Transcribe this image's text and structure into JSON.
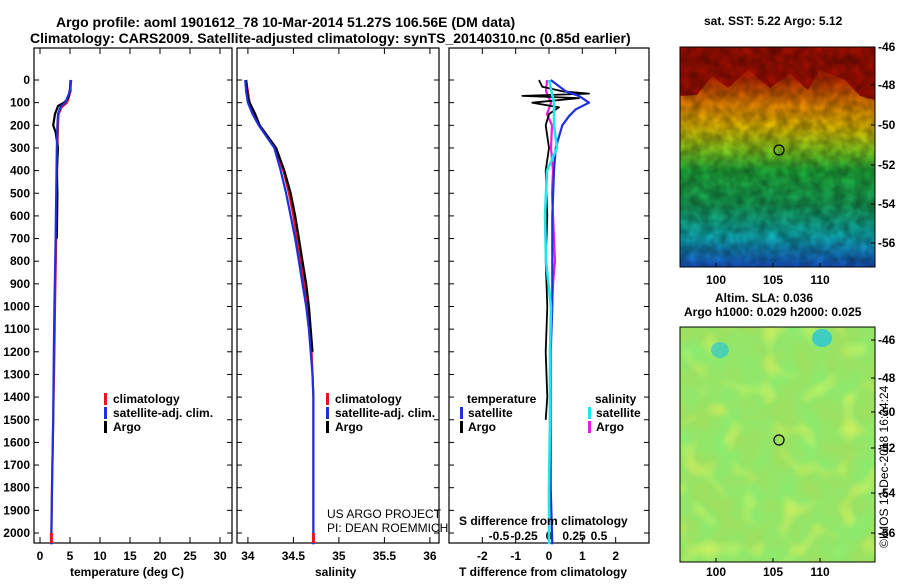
{
  "header": {
    "title_line1": "Argo profile: aoml 1901612_78 10-Mar-2014 51.27S 106.56E (DM data)",
    "title_line2": "Climatology: CARS2009. Satellite-adjusted climatology: synTS_20140310.nc (0.85d earlier)"
  },
  "colors": {
    "climatology": "#e8141c",
    "satellite": "#1f2fe0",
    "argo": "#000000",
    "sat_t": "#1f2fe0",
    "sat_s": "#22e6e6",
    "argo_s": "#e81ce0"
  },
  "depth_ticks": [
    "0",
    "100",
    "200",
    "300",
    "400",
    "500",
    "600",
    "700",
    "800",
    "900",
    "1000",
    "1100",
    "1200",
    "1300",
    "1400",
    "1500",
    "1600",
    "1700",
    "1800",
    "1900",
    "2000"
  ],
  "panels": {
    "temperature": {
      "xlabel": "temperature (deg C)",
      "xticks": [
        "0",
        "5",
        "10",
        "15",
        "20",
        "25",
        "30"
      ],
      "legend": [
        "climatology",
        "satellite-adj. clim.",
        "Argo"
      ]
    },
    "salinity": {
      "xlabel": "salinity",
      "xticks": [
        "34",
        "34.5",
        "35",
        "35.5",
        "36"
      ],
      "legend": [
        "climatology",
        "satellite-adj. clim.",
        "Argo"
      ],
      "credit1": "US ARGO PROJECT",
      "credit2": "PI: DEAN ROEMMICH"
    },
    "difference": {
      "xlabel": "T difference from climatology",
      "xticks": [
        "-2",
        "-1",
        "0",
        "1",
        "2"
      ],
      "top_label": "S difference from climatology",
      "top_ticks": [
        "-0.5",
        "-0.25",
        "0",
        "0.25",
        "0.5"
      ],
      "legend_t_title": "temperature",
      "legend_s_title": "salinity",
      "legend_t": [
        "satellite",
        "Argo"
      ],
      "legend_s": [
        "satellite",
        "Argo"
      ]
    }
  },
  "maps": {
    "sst_title": "sat. SST: 5.22 Argo: 5.12",
    "sla_title1": "Altim. SLA: 0.036",
    "sla_title2": "Argo h1000: 0.029 h2000: 0.025",
    "lat_ticks": [
      "-46",
      "-48",
      "-50",
      "-52",
      "-54",
      "-56"
    ],
    "lon_ticks": [
      "100",
      "105",
      "110"
    ],
    "footer": "©IMOS 13-Dec-2018 16:24:24"
  },
  "chart_data": [
    {
      "type": "line",
      "title": "",
      "xlabel": "temperature (deg C)",
      "ylabel": "",
      "xlim": [
        -1,
        32
      ],
      "ylim": [
        2080,
        -50
      ],
      "series": [
        {
          "name": "climatology",
          "depth": [
            0,
            50,
            100,
            120,
            150,
            200,
            300,
            500,
            700,
            1000,
            1200,
            1500,
            1800,
            2000,
            2050
          ],
          "values": [
            5.1,
            5.1,
            4.5,
            3.6,
            3.1,
            3.0,
            2.9,
            2.8,
            2.7,
            2.5,
            2.4,
            2.2,
            2.0,
            1.9,
            1.9
          ]
        },
        {
          "name": "satellite-adj. clim.",
          "depth": [
            0,
            50,
            100,
            120,
            150,
            200,
            300,
            500,
            700,
            1000,
            1200,
            1500,
            1800,
            2000,
            2050
          ],
          "values": [
            5.2,
            5.0,
            4.2,
            3.4,
            3.0,
            2.9,
            2.8,
            2.7,
            2.6,
            2.4,
            2.3,
            2.2,
            2.0,
            1.9,
            1.9
          ]
        },
        {
          "name": "Argo",
          "depth": [
            0,
            40,
            80,
            100,
            115,
            150,
            200,
            230,
            300,
            400,
            500,
            700
          ],
          "values": [
            5.1,
            5.0,
            4.7,
            4.0,
            3.0,
            2.5,
            2.2,
            2.6,
            3.0,
            2.8,
            2.9,
            2.8
          ]
        }
      ]
    },
    {
      "type": "line",
      "title": "",
      "xlabel": "salinity",
      "ylabel": "",
      "xlim": [
        33.88,
        36.1
      ],
      "ylim": [
        2080,
        -50
      ],
      "series": [
        {
          "name": "climatology",
          "depth": [
            0,
            50,
            100,
            150,
            200,
            300,
            400,
            500,
            600,
            700,
            800,
            900,
            1000,
            1100,
            1200,
            1300,
            1400,
            1500,
            1800,
            2000,
            2050
          ],
          "values": [
            33.98,
            34.0,
            34.02,
            34.06,
            34.12,
            34.3,
            34.39,
            34.45,
            34.5,
            34.54,
            34.58,
            34.62,
            34.65,
            34.68,
            34.7,
            34.71,
            34.72,
            34.72,
            34.72,
            34.72,
            34.72
          ]
        },
        {
          "name": "satellite-adj. clim.",
          "depth": [
            0,
            50,
            100,
            150,
            200,
            300,
            400,
            500,
            600,
            700,
            800,
            900,
            1000,
            1100,
            1200,
            1300,
            1400,
            1500,
            1800,
            2000,
            2050
          ],
          "values": [
            33.97,
            33.98,
            34.0,
            34.05,
            34.12,
            34.29,
            34.36,
            34.42,
            34.47,
            34.52,
            34.56,
            34.6,
            34.64,
            34.67,
            34.69,
            34.71,
            34.72,
            34.72,
            34.72,
            34.72,
            34.72
          ]
        },
        {
          "name": "Argo",
          "depth": [
            0,
            40,
            80,
            100,
            150,
            200,
            300,
            400,
            500,
            600,
            700,
            800,
            900,
            1000,
            1100,
            1200
          ],
          "values": [
            33.98,
            33.99,
            34.0,
            34.02,
            34.08,
            34.13,
            34.31,
            34.4,
            34.47,
            34.52,
            34.56,
            34.6,
            34.64,
            34.67,
            34.69,
            34.71
          ]
        }
      ]
    },
    {
      "type": "line",
      "title": "",
      "xlabel": "T difference from climatology",
      "ylabel": "",
      "xlim": [
        -3,
        3
      ],
      "ylim": [
        2080,
        -50
      ],
      "series": [
        {
          "name": "temperature satellite",
          "depth": [
            0,
            50,
            70,
            100,
            130,
            160,
            200,
            250,
            300,
            400,
            600,
            800,
            1000,
            1200,
            1500,
            1800,
            2050
          ],
          "values": [
            0.05,
            0.5,
            0.9,
            1.2,
            0.8,
            0.6,
            0.4,
            0.3,
            0.2,
            0.15,
            0.1,
            0.1,
            0.1,
            0.05,
            0.05,
            0.05,
            0.1
          ]
        },
        {
          "name": "temperature Argo",
          "depth": [
            0,
            30,
            50,
            60,
            70,
            80,
            100,
            120,
            150,
            200,
            300,
            400,
            600,
            800,
            1000,
            1200,
            1400,
            1500
          ],
          "values": [
            -0.3,
            -0.2,
            0.4,
            1.2,
            -0.8,
            0.9,
            -0.5,
            0.3,
            0.0,
            -0.1,
            0.0,
            -0.1,
            -0.05,
            -0.1,
            -0.05,
            -0.1,
            -0.05,
            -0.1
          ]
        },
        {
          "name": "salinity satellite",
          "depth": [
            0,
            100,
            200,
            300,
            400,
            600,
            800,
            1000,
            1200,
            1500,
            1800,
            2050
          ],
          "values": [
            0.0,
            0.05,
            0.05,
            0.08,
            -0.02,
            -0.04,
            -0.03,
            0.02,
            0.01,
            0.01,
            0.0,
            0.0
          ]
        },
        {
          "name": "salinity Argo",
          "depth": [
            0,
            50,
            100,
            150,
            200,
            300,
            400,
            500,
            600,
            700,
            800,
            900,
            1000,
            1100,
            1200
          ],
          "values": [
            -0.02,
            -0.03,
            0.02,
            -0.02,
            0.03,
            0.02,
            0.04,
            0.03,
            0.04,
            0.05,
            0.06,
            0.04,
            0.03,
            0.02,
            0.01
          ]
        }
      ]
    }
  ]
}
